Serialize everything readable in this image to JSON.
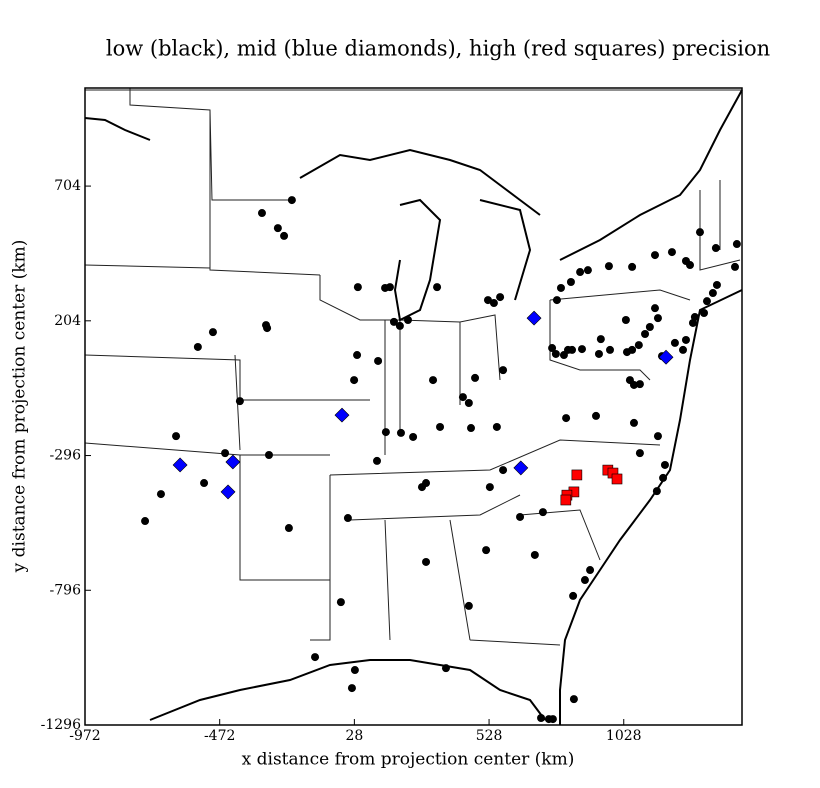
{
  "chart_data": {
    "type": "scatter",
    "title": "low (black), mid (blue diamonds), high (red squares) precision",
    "x_label": "x distance from projection center (km)",
    "y_label": "y distance from projection center (km)",
    "xlim": [
      -972,
      1467
    ],
    "ylim": [
      -1296,
      1068
    ],
    "xticks": [
      -972,
      -472,
      28,
      528,
      1028
    ],
    "yticks": [
      -1296,
      -796,
      -296,
      204,
      704
    ],
    "series": [
      {
        "color": "#000000",
        "marker": "circle",
        "x": [
          -315,
          -256,
          -233,
          -204,
          41,
          142,
          160,
          335,
          569,
          524,
          546,
          175,
          197,
          227,
          -300,
          -296,
          -497,
          -553,
          38,
          27,
          320,
          116,
          476,
          580,
          431,
          453,
          762,
          776,
          780,
          795,
          832,
          866,
          895,
          973,
          1059,
          1144,
          1207,
          1311,
          1259,
          1274,
          1370,
          1441,
          1448,
          1374,
          1359,
          1337,
          1326,
          1292,
          1285,
          1259,
          1248,
          1218,
          1144,
          1155,
          1125,
          1107,
          1084,
          1059,
          1040,
          977,
          943,
          873,
          836,
          806,
          821,
          1036,
          936,
          1170,
          1088,
          1066,
          1051,
          814,
          925,
          1066,
          1181,
          1174,
          1151,
          557,
          461,
          346,
          246,
          201,
          145,
          112,
          279,
          294,
          531,
          580,
          643,
          728,
          4,
          -215,
          -749,
          -690,
          -530,
          -634,
          -397,
          -452,
          -289,
          294,
          517,
          903,
          884,
          840,
          698,
          453,
          -22,
          -118,
          30,
          19,
          368,
          843,
          721,
          750,
          765,
          1155,
          1088
        ],
        "values": [
          604,
          548,
          519,
          652,
          329,
          326,
          329,
          329,
          292,
          281,
          270,
          200,
          185,
          207,
          188,
          177,
          162,
          107,
          77,
          -16,
          -16,
          55,
          -8,
          21,
          -79,
          -101,
          103,
          81,
          281,
          326,
          348,
          385,
          392,
          407,
          404,
          448,
          459,
          533,
          426,
          411,
          474,
          404,
          489,
          337,
          307,
          277,
          233,
          218,
          196,
          133,
          96,
          122,
          251,
          214,
          181,
          155,
          114,
          96,
          88,
          96,
          136,
          99,
          96,
          77,
          96,
          207,
          81,
          73,
          -31,
          -34,
          -16,
          -157,
          -149,
          -175,
          -331,
          -379,
          -428,
          -190,
          -194,
          -190,
          -227,
          -212,
          -209,
          -316,
          -413,
          -398,
          -413,
          -350,
          -524,
          -506,
          -528,
          -565,
          -539,
          -439,
          -398,
          -224,
          -94,
          -287,
          -294,
          -691,
          -647,
          -721,
          -758,
          -817,
          -665,
          -854,
          -840,
          -1044,
          -1092,
          -1159,
          -1085,
          -1200,
          -1270,
          -1274,
          -1274,
          -224,
          -287
        ]
      },
      {
        "color": "#0000ff",
        "marker": "diamond",
        "x": [
          -619,
          -423,
          -441,
          -18,
          695,
          646,
          1185
        ],
        "values": [
          -331,
          -320,
          -431,
          -146,
          214,
          -342,
          69
        ]
      },
      {
        "color": "#ff0000",
        "marker": "square",
        "x": [
          854,
          969,
          988,
          1003,
          843,
          817,
          813
        ],
        "values": [
          -368,
          -350,
          -361,
          -383,
          -431,
          -443,
          -461
        ]
      }
    ]
  }
}
